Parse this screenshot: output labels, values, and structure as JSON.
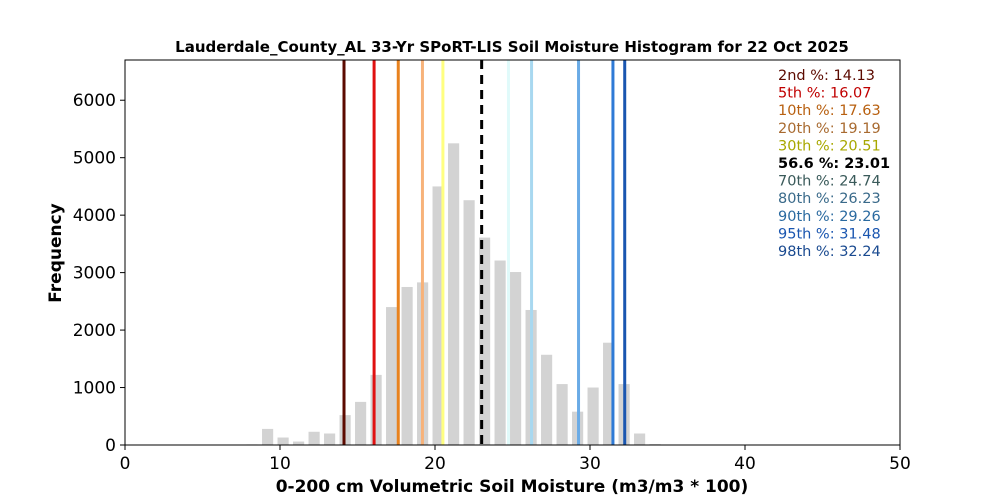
{
  "chart_data": {
    "type": "bar",
    "title": "Lauderdale_County_AL 33-Yr SPoRT-LIS Soil Moisture Histogram for 22 Oct 2025",
    "xlabel": "0-200 cm Volumetric Soil Moisture (m3/m3 * 100)",
    "ylabel": "Frequency",
    "xlim": [
      0,
      50
    ],
    "ylim": [
      0,
      6700
    ],
    "xticks": [
      0,
      10,
      20,
      30,
      40,
      50
    ],
    "yticks": [
      0,
      1000,
      2000,
      3000,
      4000,
      5000,
      6000
    ],
    "bar_color": "#d3d3d3",
    "bin_width": 1,
    "bars": [
      {
        "x": 8.2,
        "value": 10
      },
      {
        "x": 9.2,
        "value": 280
      },
      {
        "x": 10.2,
        "value": 130
      },
      {
        "x": 11.2,
        "value": 60
      },
      {
        "x": 12.2,
        "value": 230
      },
      {
        "x": 13.2,
        "value": 200
      },
      {
        "x": 14.2,
        "value": 520
      },
      {
        "x": 15.2,
        "value": 750
      },
      {
        "x": 16.2,
        "value": 1220
      },
      {
        "x": 17.2,
        "value": 2400
      },
      {
        "x": 18.2,
        "value": 2750
      },
      {
        "x": 19.2,
        "value": 2830
      },
      {
        "x": 20.2,
        "value": 4500
      },
      {
        "x": 21.2,
        "value": 5250
      },
      {
        "x": 22.2,
        "value": 4260
      },
      {
        "x": 23.2,
        "value": 3610
      },
      {
        "x": 24.2,
        "value": 3210
      },
      {
        "x": 25.2,
        "value": 3010
      },
      {
        "x": 26.2,
        "value": 2350
      },
      {
        "x": 27.2,
        "value": 1570
      },
      {
        "x": 28.2,
        "value": 1060
      },
      {
        "x": 29.2,
        "value": 580
      },
      {
        "x": 30.2,
        "value": 1000
      },
      {
        "x": 31.2,
        "value": 1780
      },
      {
        "x": 32.2,
        "value": 1060
      },
      {
        "x": 33.2,
        "value": 200
      },
      {
        "x": 34.2,
        "value": 15
      },
      {
        "x": 35.2,
        "value": 5
      },
      {
        "x": 36.2,
        "value": 8
      }
    ],
    "percentile_lines": [
      {
        "label": "2nd %: 14.13",
        "x": 14.13,
        "color": "#5c0a00",
        "dashed": false
      },
      {
        "label": "5th %: 16.07",
        "x": 16.07,
        "color": "#e01010",
        "dashed": false
      },
      {
        "label": "10th %: 17.63",
        "x": 17.63,
        "color": "#e8821e",
        "dashed": false
      },
      {
        "label": "20th %: 19.19",
        "x": 19.19,
        "color": "#f7b27a",
        "dashed": false
      },
      {
        "label": "30th %: 20.51",
        "x": 20.51,
        "color": "#ffff80",
        "dashed": false
      },
      {
        "label": "56.6 %: 23.01",
        "x": 23.01,
        "color": "#000000",
        "dashed": true
      },
      {
        "label": "70th %: 24.74",
        "x": 24.74,
        "color": "#e0fafa",
        "dashed": false
      },
      {
        "label": "80th %: 26.23",
        "x": 26.23,
        "color": "#a8d8f0",
        "dashed": false
      },
      {
        "label": "90th %: 29.26",
        "x": 29.26,
        "color": "#6aabe6",
        "dashed": false
      },
      {
        "label": "95th %: 31.48",
        "x": 31.48,
        "color": "#2e7ad6",
        "dashed": false
      },
      {
        "label": "98th %: 32.24",
        "x": 32.24,
        "color": "#1a56b0",
        "dashed": false
      }
    ],
    "legend_text_colors": [
      "#5c0a00",
      "#c00000",
      "#b86010",
      "#a86a30",
      "#a8a800",
      "#000000",
      "#3a5a5a",
      "#3a6a8a",
      "#2a6aa0",
      "#1a56b0",
      "#1a4a90"
    ],
    "legend": "top-right",
    "grid": false
  }
}
